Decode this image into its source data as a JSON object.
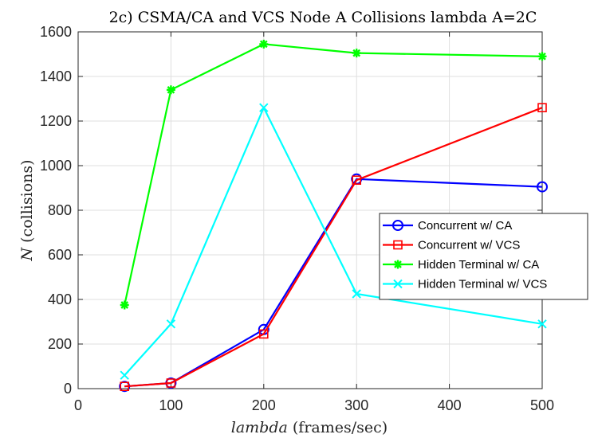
{
  "chart_data": {
    "type": "line",
    "title": "2c) CSMA/CA and VCS Node A Collisions lambda A=2C",
    "xlabel_var": "lambda",
    "xlabel_unit": "(frames/sec)",
    "ylabel_var": "N",
    "ylabel_unit": "(collisions)",
    "xlim": [
      0,
      500
    ],
    "ylim": [
      0,
      1600
    ],
    "xticks": [
      0,
      100,
      200,
      300,
      400,
      500
    ],
    "yticks": [
      0,
      200,
      400,
      600,
      800,
      1000,
      1200,
      1400,
      1600
    ],
    "grid": true,
    "legend_position": "right",
    "x": [
      50,
      100,
      200,
      300,
      500
    ],
    "series": [
      {
        "name": "Concurrent w/ CA",
        "color": "#0000ff",
        "marker": "circle",
        "values": [
          10,
          25,
          265,
          940,
          905
        ]
      },
      {
        "name": "Concurrent w/ VCS",
        "color": "#ff0000",
        "marker": "square",
        "values": [
          10,
          25,
          245,
          935,
          1260
        ]
      },
      {
        "name": "Hidden Terminal w/ CA",
        "color": "#00ff00",
        "marker": "asterisk",
        "values": [
          375,
          1340,
          1545,
          1505,
          1490
        ]
      },
      {
        "name": "Hidden Terminal w/ VCS",
        "color": "#00ffff",
        "marker": "x",
        "values": [
          60,
          290,
          1260,
          425,
          290
        ]
      }
    ]
  }
}
